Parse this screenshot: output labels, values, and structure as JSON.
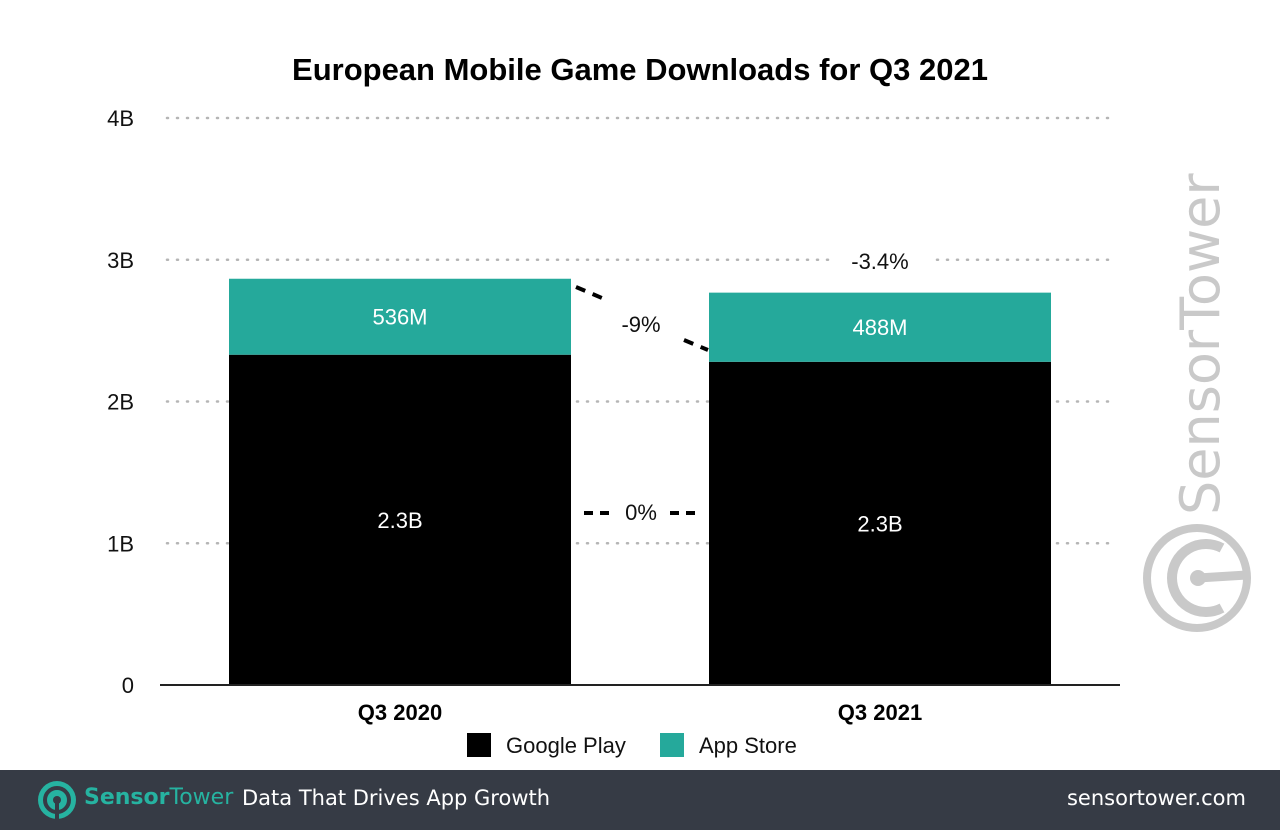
{
  "chart_data": {
    "type": "bar",
    "stacked": true,
    "title": "European Mobile Game Downloads for Q3 2021",
    "xlabel": "",
    "ylabel": "",
    "categories": [
      "Q3 2020",
      "Q3 2021"
    ],
    "series": [
      {
        "name": "Google Play",
        "color": "#000000",
        "values": [
          2.33,
          2.28
        ],
        "labels": [
          "2.3B",
          "2.3B"
        ]
      },
      {
        "name": "App Store",
        "color": "#25a99b",
        "values": [
          0.536,
          0.488
        ],
        "labels": [
          "536M",
          "488M"
        ]
      }
    ],
    "ylim": [
      0,
      4
    ],
    "yunit": "billions",
    "yticks": [
      0,
      1,
      2,
      3,
      4
    ],
    "ytick_labels": [
      "0",
      "1B",
      "2B",
      "3B",
      "4B"
    ],
    "grid": true,
    "legend_position": "bottom",
    "annotations": {
      "google_play_change": "0%",
      "app_store_change": "-9%",
      "total_change": "-3.4%"
    }
  },
  "watermark": {
    "text": "SensorTower",
    "color": "#c9c9c9"
  },
  "footer": {
    "brand_bold": "Sensor",
    "brand_light": "Tower",
    "tagline": "Data That Drives App Growth",
    "url": "sensortower.com",
    "background": "#363b45",
    "accent": "#26b3a1"
  }
}
